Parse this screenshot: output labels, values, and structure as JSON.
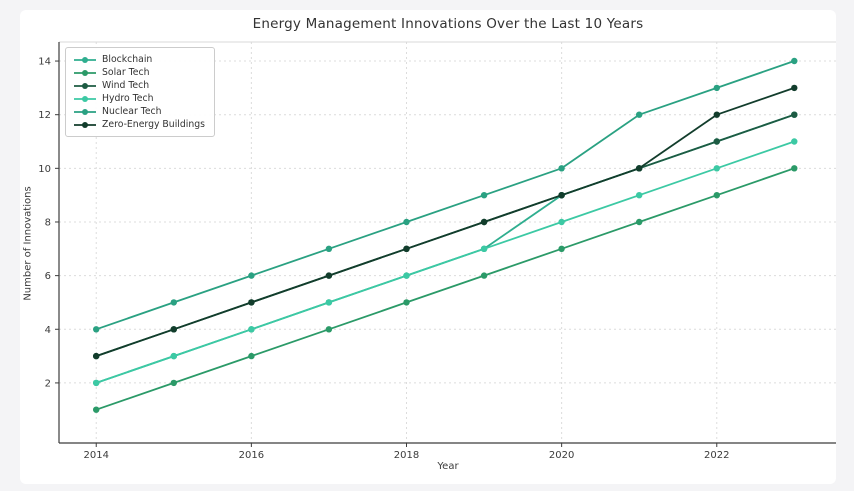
{
  "page": {
    "background": "#f4f4f6",
    "figure_background": "#ffffff"
  },
  "chart_data": {
    "type": "line",
    "title": "Energy Management Innovations Over the Last 10 Years",
    "xlabel": "Year",
    "ylabel": "Number of Innovations",
    "x": [
      2014,
      2015,
      2016,
      2017,
      2018,
      2019,
      2020,
      2021,
      2022,
      2023
    ],
    "series": [
      {
        "name": "Blockchain",
        "color": "#2fae8f",
        "values": [
          2,
          3,
          4,
          5,
          6,
          7,
          9,
          10,
          11,
          12
        ]
      },
      {
        "name": "Solar Tech",
        "color": "#2b9a68",
        "values": [
          1,
          2,
          3,
          4,
          5,
          6,
          7,
          8,
          9,
          10
        ]
      },
      {
        "name": "Wind Tech",
        "color": "#1d5b43",
        "values": [
          3,
          4,
          5,
          6,
          7,
          8,
          9,
          10,
          11,
          12
        ]
      },
      {
        "name": "Hydro Tech",
        "color": "#3cc9a4",
        "values": [
          2,
          3,
          4,
          5,
          6,
          7,
          8,
          9,
          10,
          11
        ]
      },
      {
        "name": "Nuclear Tech",
        "color": "#2aa182",
        "values": [
          4,
          5,
          6,
          7,
          8,
          9,
          10,
          12,
          13,
          14
        ]
      },
      {
        "name": "Zero-Energy Buildings",
        "color": "#123d2c",
        "values": [
          3,
          4,
          5,
          6,
          7,
          8,
          9,
          10,
          12,
          13
        ]
      }
    ],
    "xticks": [
      2014,
      2016,
      2018,
      2020,
      2022
    ],
    "yticks": [
      2,
      4,
      6,
      8,
      10,
      12,
      14
    ],
    "xlim": [
      2013.52,
      2023.55
    ],
    "ylim": [
      -0.24,
      14.71
    ],
    "grid": "dashed",
    "legend_position": "upper left"
  }
}
